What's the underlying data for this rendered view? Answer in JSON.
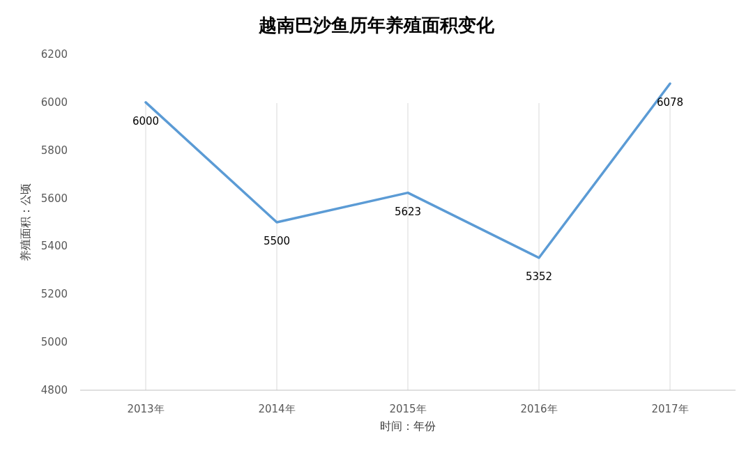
{
  "chart_data": {
    "type": "line",
    "title": "越南巴沙鱼历年养殖面积变化",
    "xlabel": "时间：年份",
    "ylabel": "养殖面积：公顷",
    "categories": [
      "2013年",
      "2014年",
      "2015年",
      "2016年",
      "2017年"
    ],
    "series": [
      {
        "color": "#5b9bd5",
        "values": [
          6000,
          5500,
          5623,
          5352,
          6078
        ]
      }
    ],
    "ylim": [
      4800,
      6200
    ],
    "yticks": [
      4800,
      5000,
      5200,
      5400,
      5600,
      5800,
      6000,
      6200
    ],
    "grid": "x",
    "data_labels": true,
    "marker": "none",
    "line_style": "solid"
  }
}
